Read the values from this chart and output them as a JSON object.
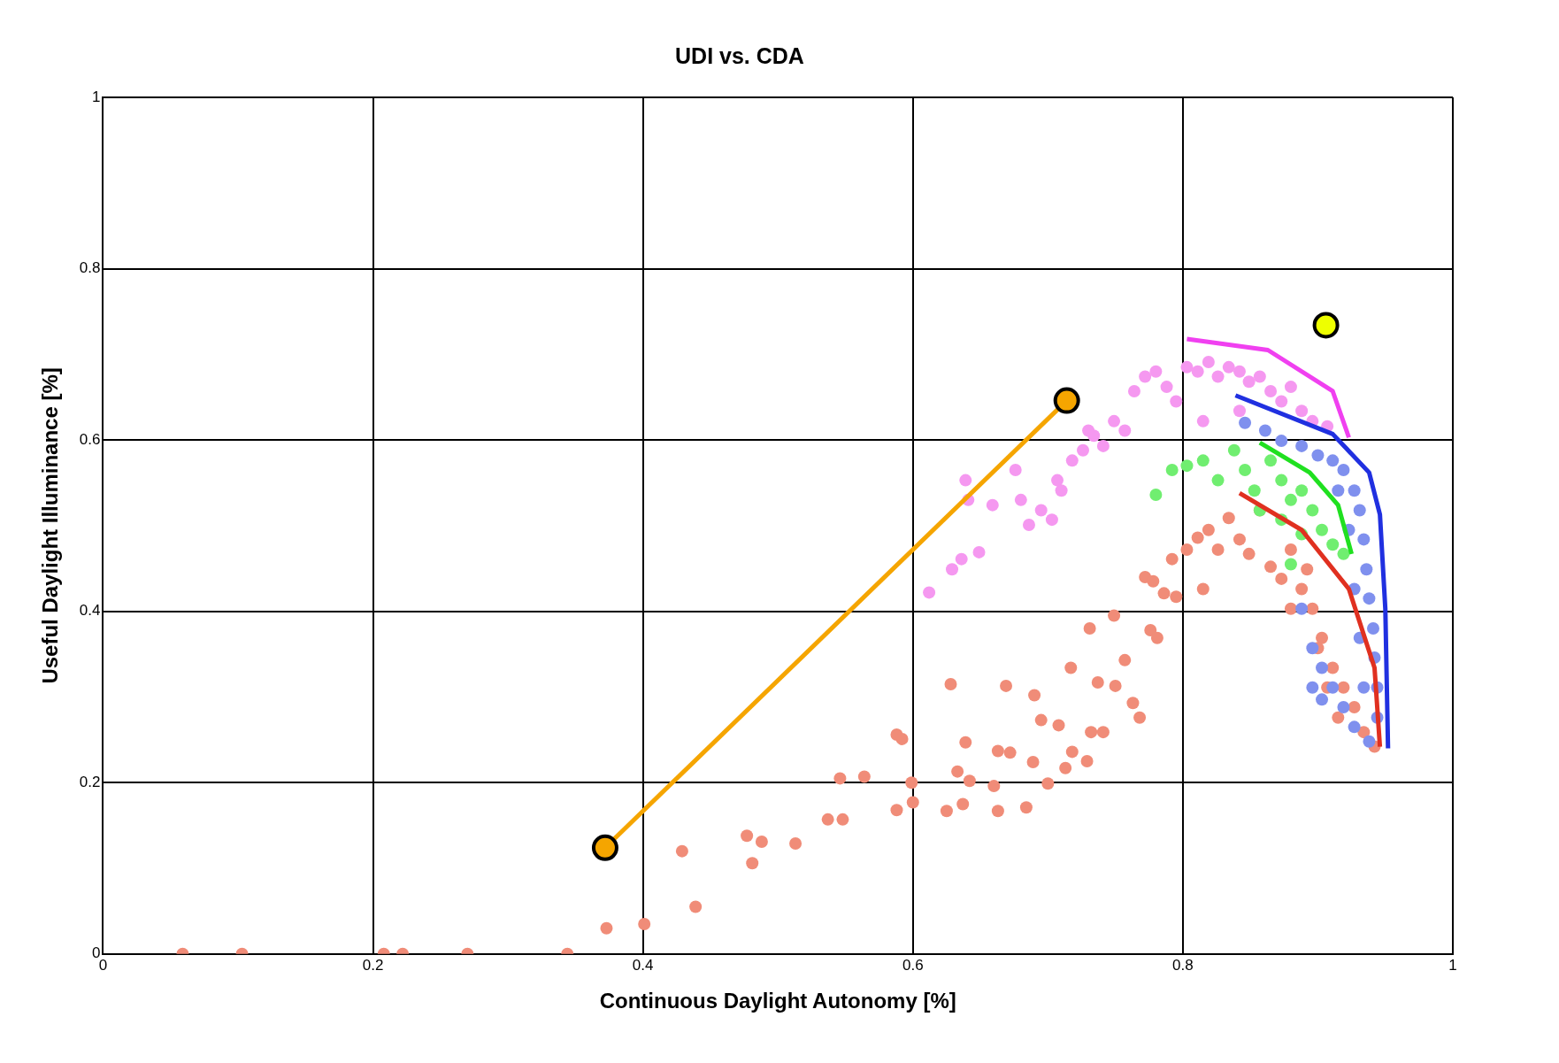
{
  "chart_data": {
    "type": "scatter",
    "title": "UDI vs. CDA",
    "xlabel": "Continuous Daylight Autonomy [%]",
    "ylabel": "Useful Daylight Illuminance [%]",
    "xlim": [
      0,
      1
    ],
    "ylim": [
      0,
      1
    ],
    "xticks": [
      0,
      0.2,
      0.4,
      0.6,
      0.8,
      1
    ],
    "yticks": [
      0,
      0.2,
      0.4,
      0.6,
      0.8,
      1
    ],
    "grid": true,
    "marker": "circle",
    "series": [
      {
        "color": "#f08c78",
        "x": [
          0.059,
          0.103,
          0.208,
          0.222,
          0.27,
          0.344,
          0.373,
          0.401,
          0.439,
          0.429,
          0.477,
          0.481,
          0.488,
          0.513,
          0.537,
          0.546,
          0.548,
          0.564,
          0.588,
          0.592,
          0.588,
          0.599,
          0.6,
          0.625,
          0.628,
          0.633,
          0.637,
          0.639,
          0.642,
          0.66,
          0.663,
          0.663,
          0.669,
          0.672,
          0.684,
          0.689,
          0.69,
          0.695,
          0.7,
          0.708,
          0.713,
          0.717,
          0.718,
          0.729,
          0.732,
          0.737,
          0.731,
          0.749,
          0.741,
          0.75,
          0.757,
          0.763,
          0.768,
          0.772,
          0.776,
          0.778,
          0.781,
          0.786,
          0.792,
          0.795,
          0.803,
          0.811,
          0.815,
          0.819,
          0.826,
          0.834,
          0.842,
          0.849,
          0.857,
          0.865,
          0.873,
          0.88,
          0.888,
          0.896,
          0.903,
          0.911,
          0.919,
          0.927,
          0.934,
          0.942,
          0.9,
          0.907,
          0.915,
          0.88,
          0.892
        ],
        "values": [
          0,
          0,
          0,
          0,
          0,
          0,
          0.03,
          0.035,
          0.055,
          0.12,
          0.138,
          0.106,
          0.131,
          0.129,
          0.157,
          0.205,
          0.157,
          0.207,
          0.256,
          0.251,
          0.168,
          0.2,
          0.177,
          0.167,
          0.315,
          0.213,
          0.175,
          0.247,
          0.202,
          0.196,
          0.167,
          0.237,
          0.313,
          0.235,
          0.171,
          0.224,
          0.302,
          0.273,
          0.199,
          0.267,
          0.217,
          0.334,
          0.236,
          0.225,
          0.259,
          0.317,
          0.38,
          0.395,
          0.259,
          0.313,
          0.343,
          0.293,
          0.276,
          0.44,
          0.378,
          0.435,
          0.369,
          0.421,
          0.461,
          0.417,
          0.472,
          0.486,
          0.426,
          0.495,
          0.472,
          0.509,
          0.484,
          0.467,
          0.518,
          0.452,
          0.438,
          0.472,
          0.426,
          0.403,
          0.369,
          0.334,
          0.311,
          0.288,
          0.259,
          0.242,
          0.357,
          0.311,
          0.276,
          0.403,
          0.449
        ]
      },
      {
        "color": "#f598f0",
        "x": [
          0.612,
          0.629,
          0.636,
          0.649,
          0.639,
          0.641,
          0.659,
          0.676,
          0.68,
          0.686,
          0.695,
          0.703,
          0.707,
          0.71,
          0.718,
          0.726,
          0.73,
          0.734,
          0.741,
          0.749,
          0.757,
          0.764,
          0.772,
          0.78,
          0.788,
          0.795,
          0.803,
          0.811,
          0.819,
          0.826,
          0.834,
          0.842,
          0.849,
          0.857,
          0.865,
          0.873,
          0.88,
          0.888,
          0.896,
          0.815,
          0.842,
          0.907
        ],
        "values": [
          0.422,
          0.449,
          0.461,
          0.469,
          0.553,
          0.53,
          0.524,
          0.565,
          0.53,
          0.501,
          0.518,
          0.507,
          0.553,
          0.541,
          0.576,
          0.588,
          0.611,
          0.605,
          0.593,
          0.622,
          0.611,
          0.657,
          0.674,
          0.68,
          0.662,
          0.645,
          0.685,
          0.68,
          0.691,
          0.674,
          0.685,
          0.68,
          0.668,
          0.674,
          0.657,
          0.645,
          0.662,
          0.634,
          0.622,
          0.622,
          0.634,
          0.616
        ]
      },
      {
        "color": "#7f90ee",
        "x": [
          0.846,
          0.861,
          0.873,
          0.888,
          0.9,
          0.911,
          0.919,
          0.927,
          0.931,
          0.934,
          0.936,
          0.938,
          0.941,
          0.942,
          0.944,
          0.944,
          0.938,
          0.927,
          0.919,
          0.911,
          0.903,
          0.896,
          0.888,
          0.896,
          0.903,
          0.915,
          0.923,
          0.927,
          0.931,
          0.934
        ],
        "values": [
          0.62,
          0.611,
          0.599,
          0.593,
          0.582,
          0.576,
          0.565,
          0.541,
          0.518,
          0.484,
          0.449,
          0.415,
          0.38,
          0.346,
          0.311,
          0.276,
          0.248,
          0.265,
          0.288,
          0.311,
          0.334,
          0.357,
          0.403,
          0.311,
          0.297,
          0.541,
          0.495,
          0.426,
          0.369,
          0.311
        ]
      },
      {
        "color": "#70ee70",
        "x": [
          0.78,
          0.792,
          0.803,
          0.815,
          0.826,
          0.838,
          0.846,
          0.853,
          0.865,
          0.873,
          0.88,
          0.888,
          0.896,
          0.903,
          0.911,
          0.919,
          0.857,
          0.873,
          0.888,
          0.88
        ],
        "values": [
          0.536,
          0.565,
          0.57,
          0.576,
          0.553,
          0.588,
          0.565,
          0.541,
          0.576,
          0.553,
          0.53,
          0.541,
          0.518,
          0.495,
          0.478,
          0.467,
          0.518,
          0.507,
          0.49,
          0.455
        ]
      },
      {
        "type": "line",
        "marker": "none",
        "color": "#f040f0",
        "x": [
          0.803,
          0.863,
          0.911,
          0.923
        ],
        "values": [
          0.718,
          0.705,
          0.657,
          0.603
        ]
      },
      {
        "type": "line",
        "marker": "none",
        "color": "#2030e0",
        "x": [
          0.839,
          0.911,
          0.938,
          0.946,
          0.95,
          0.952
        ],
        "values": [
          0.652,
          0.607,
          0.562,
          0.513,
          0.403,
          0.24
        ]
      },
      {
        "type": "line",
        "marker": "none",
        "color": "#20e020",
        "x": [
          0.857,
          0.894,
          0.915,
          0.925
        ],
        "values": [
          0.597,
          0.562,
          0.524,
          0.467
        ]
      },
      {
        "type": "line",
        "marker": "none",
        "color": "#e03020",
        "x": [
          0.842,
          0.888,
          0.923,
          0.942,
          0.946
        ],
        "values": [
          0.538,
          0.495,
          0.426,
          0.334,
          0.242
        ]
      },
      {
        "type": "line",
        "marker": "circle",
        "color": "#f5a500",
        "x": [
          0.372,
          0.714
        ],
        "values": [
          0.124,
          0.646
        ]
      },
      {
        "type": "scatter",
        "marker": "circle",
        "color": "#eeff00",
        "x": [
          0.906
        ],
        "values": [
          0.734
        ]
      }
    ]
  }
}
